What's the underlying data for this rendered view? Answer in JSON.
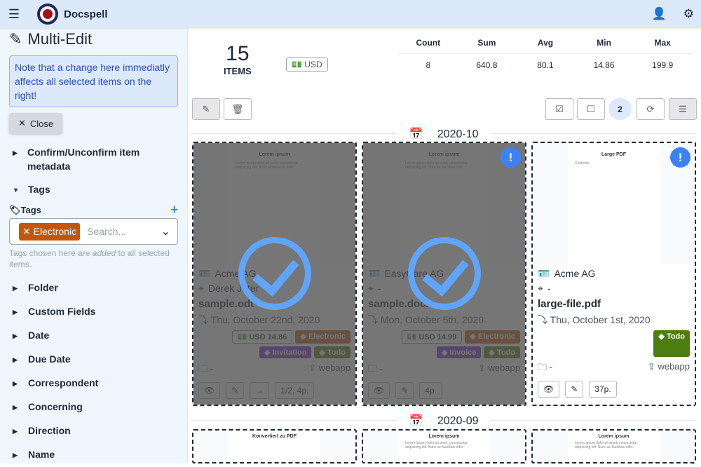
{
  "app": {
    "title": "Docspell"
  },
  "sidebar": {
    "title": "Multi-Edit",
    "note": "Note that a change here immediatly affects all selected items on the right!",
    "close_label": "Close",
    "sections": [
      {
        "label": "Confirm/Unconfirm item metadata",
        "expanded": false
      },
      {
        "label": "Tags",
        "expanded": true
      }
    ],
    "tags": {
      "label": "Tags",
      "selected": "Electronic",
      "selected_color": "#c2570c",
      "placeholder": "Search...",
      "hint_pre": "Tags chosen here are ",
      "hint_em": "added",
      "hint_post": " to all selected items."
    },
    "more_sections": [
      "Folder",
      "Custom Fields",
      "Date",
      "Due Date",
      "Correspondent",
      "Concerning",
      "Direction",
      "Name"
    ]
  },
  "summary": {
    "count": "15",
    "count_label": "ITEMS",
    "currency": "USD",
    "headers": [
      "Count",
      "Sum",
      "Avg",
      "Min",
      "Max"
    ],
    "values": [
      "8",
      "640.8",
      "80.1",
      "14.86",
      "199.9"
    ]
  },
  "toolbar": {
    "selected_count": "2"
  },
  "groups": [
    "2020-10",
    "2020-09"
  ],
  "cards": [
    {
      "preview_title": "Lorem ipsum",
      "preview_text": "Lorem ipsum dolor sit amet, consectetur adipiscing elit. Nunc ac faucibus odio.",
      "selected": true,
      "new": false,
      "correspondent": "Acme AG",
      "concerning": "Derek Jeter",
      "name": "sample.odt",
      "date": "Thu, October 22nd, 2020",
      "amount": "USD 14.86",
      "tags": [
        {
          "name": "Electronic",
          "color": "#c2570c"
        },
        {
          "name": "Invitation",
          "color": "#6d28d9"
        },
        {
          "name": "Todo",
          "color": "#4d7c0f"
        }
      ],
      "folder": "-",
      "source": "webapp",
      "pages": "1/2, 4p.",
      "has_next": true
    },
    {
      "preview_title": "Lorem ipsum",
      "preview_text": "Lorem ipsum dolor sit amet, consectetur adipiscing elit. Nunc ac faucibus odio.",
      "selected": true,
      "new": true,
      "correspondent": "EasyCare AG",
      "concerning": "-",
      "name": "sample.docx",
      "date": "Mon, October 5th, 2020",
      "amount": "USD 14.99",
      "tags": [
        {
          "name": "Electronic",
          "color": "#c2570c"
        },
        {
          "name": "Invoice",
          "color": "#6d28d9"
        },
        {
          "name": "Todo",
          "color": "#4d7c0f"
        }
      ],
      "folder": "-",
      "source": "webapp",
      "pages": "4p.",
      "has_next": false
    },
    {
      "preview_title": "Large PDF",
      "preview_text": "Contents",
      "selected": false,
      "new": true,
      "correspondent": "Acme AG",
      "concerning": "-",
      "name": "large-file.pdf",
      "date": "Thu, October 1st, 2020",
      "amount": "",
      "tags": [
        {
          "name": "Todo",
          "color": "#4d7c0f"
        }
      ],
      "folder": "-",
      "source": "webapp",
      "pages": "37p.",
      "has_next": false
    }
  ],
  "cards_next": [
    {
      "preview_title": "Konvertiert zu PDF",
      "preview_text": ""
    },
    {
      "preview_title": "Lorem ipsum",
      "preview_text": "Lorem ipsum dolor sit amet, consectetur adipiscing elit. Nunc ac faucibus odio."
    },
    {
      "preview_title": "Lorem ipsum",
      "preview_text": "Lorem ipsum dolor sit amet, consectetur adipiscing elit. Nunc ac faucibus odio."
    }
  ]
}
